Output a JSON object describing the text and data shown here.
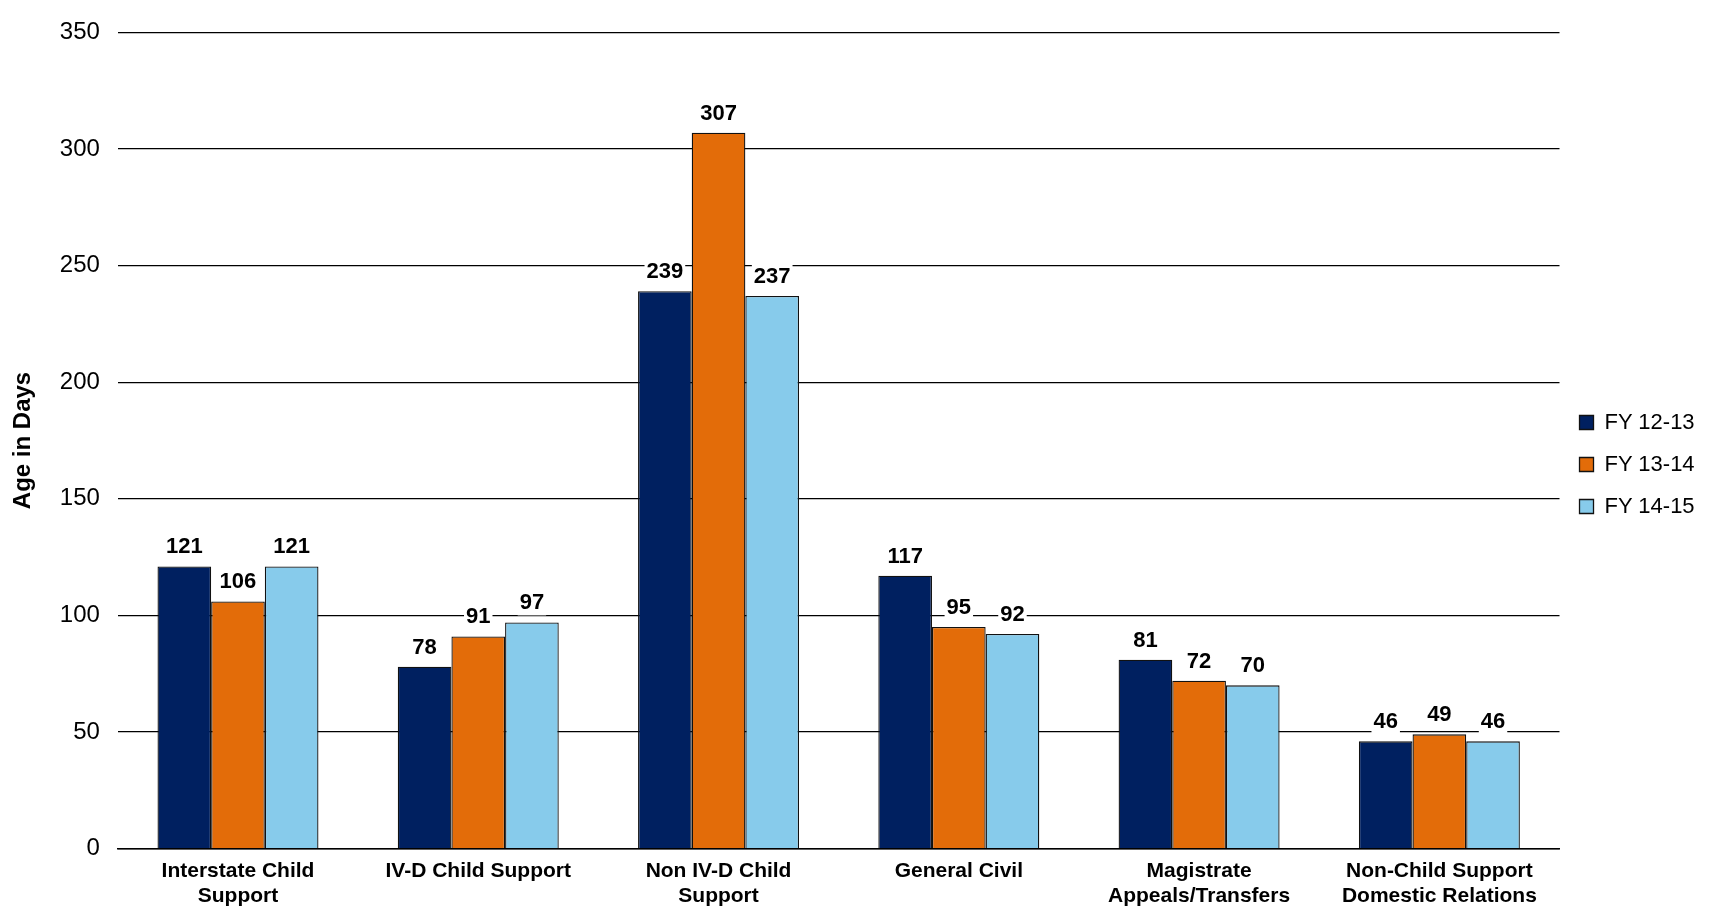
{
  "chart_data": {
    "type": "bar",
    "ylabel": "Age in Days",
    "categories": [
      "Interstate Child Support",
      "IV-D Child Support",
      "Non IV-D Child Support",
      "General Civil",
      "Magistrate Appeals/Transfers",
      "Non-Child Support Domestic Relations"
    ],
    "series": [
      {
        "name": "FY 12-13",
        "color": "#002060",
        "values": [
          121,
          78,
          239,
          117,
          81,
          46
        ]
      },
      {
        "name": "FY 13-14",
        "color": "#e36c09",
        "values": [
          106,
          91,
          307,
          95,
          72,
          49
        ]
      },
      {
        "name": "FY 14-15",
        "color": "#87cbeb",
        "values": [
          121,
          97,
          237,
          92,
          70,
          46
        ]
      }
    ],
    "ylim": [
      0,
      350
    ],
    "yticks": [
      0,
      50,
      100,
      150,
      200,
      250,
      300,
      350
    ],
    "grid": "y",
    "legend": "right",
    "data_labels": true
  }
}
